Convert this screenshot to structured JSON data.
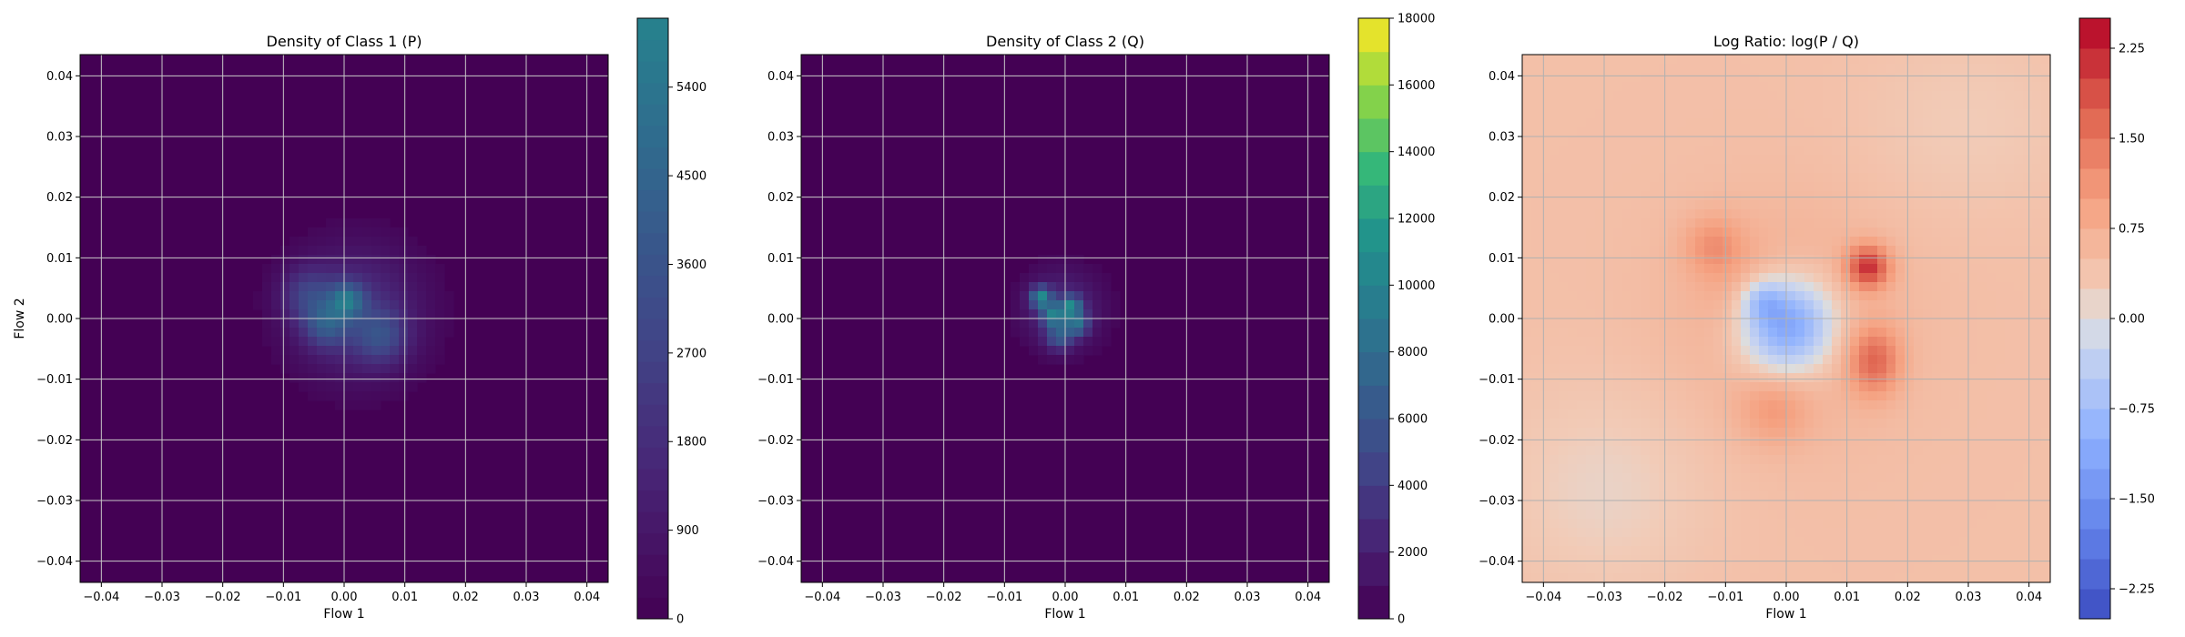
{
  "chart_data": [
    {
      "type": "heatmap",
      "title": "Density of Class 1 (P)",
      "xlabel": "Flow 1",
      "ylabel": "Flow 2",
      "xlim": [
        -0.0435,
        0.0435
      ],
      "ylim": [
        -0.0435,
        0.0435
      ],
      "xticks": [
        "−0.04",
        "−0.03",
        "−0.02",
        "−0.01",
        "0.00",
        "0.01",
        "0.02",
        "0.03",
        "0.04"
      ],
      "yticks": [
        "0.04",
        "0.03",
        "0.02",
        "0.01",
        "0.00",
        "−0.01",
        "−0.02",
        "−0.03",
        "−0.04"
      ],
      "grid": true,
      "colormap": "viridis",
      "colorbar_range": [
        0,
        6100
      ],
      "colorbar_ticks": [
        "0",
        "900",
        "1800",
        "2700",
        "3600",
        "4500",
        "5400"
      ],
      "background_color": "#440154",
      "blobs": [
        {
          "x": 0.002,
          "y": 0.001,
          "sx": 0.0075,
          "sy": 0.0075,
          "intensity": 0.18
        },
        {
          "x": 0.0005,
          "y": 0.003,
          "sx": 0.002,
          "sy": 0.002,
          "intensity": 0.34
        },
        {
          "x": -0.003,
          "y": -0.001,
          "sx": 0.0025,
          "sy": 0.0025,
          "intensity": 0.24
        },
        {
          "x": 0.006,
          "y": -0.003,
          "sx": 0.003,
          "sy": 0.003,
          "intensity": 0.2
        },
        {
          "x": -0.006,
          "y": 0.004,
          "sx": 0.003,
          "sy": 0.003,
          "intensity": 0.18
        }
      ]
    },
    {
      "type": "heatmap",
      "title": "Density of Class 2 (Q)",
      "xlabel": "Flow 1",
      "ylabel": "",
      "xlim": [
        -0.0435,
        0.0435
      ],
      "ylim": [
        -0.0435,
        0.0435
      ],
      "xticks": [
        "−0.04",
        "−0.03",
        "−0.02",
        "−0.01",
        "0.00",
        "0.01",
        "0.02",
        "0.03",
        "0.04"
      ],
      "yticks": [
        "0.04",
        "0.03",
        "0.02",
        "0.01",
        "0.00",
        "−0.01",
        "−0.02",
        "−0.03",
        "−0.04"
      ],
      "grid": true,
      "colormap": "viridis",
      "colorbar_range": [
        0,
        18000
      ],
      "colorbar_ticks": [
        "0",
        "2000",
        "4000",
        "6000",
        "8000",
        "10000",
        "12000",
        "14000",
        "16000",
        "18000"
      ],
      "background_color": "#440154",
      "blobs": [
        {
          "x": -0.0005,
          "y": 0.0015,
          "sx": 0.0045,
          "sy": 0.0045,
          "intensity": 0.16
        },
        {
          "x": -0.004,
          "y": 0.0035,
          "sx": 0.0012,
          "sy": 0.0012,
          "intensity": 0.5
        },
        {
          "x": 0.001,
          "y": 0.002,
          "sx": 0.0012,
          "sy": 0.0012,
          "intensity": 0.45
        },
        {
          "x": -0.002,
          "y": 0.0005,
          "sx": 0.0013,
          "sy": 0.0013,
          "intensity": 0.4
        },
        {
          "x": 0.002,
          "y": -0.001,
          "sx": 0.0013,
          "sy": 0.0013,
          "intensity": 0.35
        },
        {
          "x": -0.001,
          "y": -0.003,
          "sx": 0.0015,
          "sy": 0.0015,
          "intensity": 0.28
        }
      ]
    },
    {
      "type": "heatmap",
      "title": "Log Ratio: log(P / Q)",
      "xlabel": "Flow 1",
      "ylabel": "",
      "xlim": [
        -0.0435,
        0.0435
      ],
      "ylim": [
        -0.0435,
        0.0435
      ],
      "xticks": [
        "−0.04",
        "−0.03",
        "−0.02",
        "−0.01",
        "0.00",
        "0.01",
        "0.02",
        "0.03",
        "0.04"
      ],
      "yticks": [
        "0.04",
        "0.03",
        "0.02",
        "0.01",
        "0.00",
        "−0.01",
        "−0.02",
        "−0.03",
        "−0.04"
      ],
      "grid": true,
      "colormap": "coolwarm",
      "colorbar_range": [
        -2.5,
        2.5
      ],
      "colorbar_ticks": [
        "−2.25",
        "−1.50",
        "−0.75",
        "0.00",
        "0.75",
        "1.50",
        "2.25"
      ],
      "background_level": 0.45,
      "features": [
        {
          "x": 0.0,
          "y": 0.0,
          "sx": 0.013,
          "sy": 0.013,
          "value": 0.35
        },
        {
          "x": -0.006,
          "y": 0.004,
          "sx": 0.005,
          "sy": 0.005,
          "value": 0.3
        },
        {
          "x": 0.0,
          "y": -0.001,
          "sx": 0.0055,
          "sy": 0.0055,
          "value": -2.0
        },
        {
          "x": -0.004,
          "y": 0.003,
          "sx": 0.0025,
          "sy": 0.0025,
          "value": -0.8
        },
        {
          "x": 0.0135,
          "y": 0.0085,
          "sx": 0.0025,
          "sy": 0.0025,
          "value": 1.6
        },
        {
          "x": 0.0145,
          "y": -0.007,
          "sx": 0.003,
          "sy": 0.004,
          "value": 1.1
        },
        {
          "x": -0.012,
          "y": 0.012,
          "sx": 0.0035,
          "sy": 0.0035,
          "value": 0.6
        },
        {
          "x": -0.002,
          "y": -0.015,
          "sx": 0.004,
          "sy": 0.004,
          "value": 0.5
        },
        {
          "x": -0.03,
          "y": -0.028,
          "sx": 0.012,
          "sy": 0.012,
          "value": -0.3
        },
        {
          "x": 0.03,
          "y": 0.032,
          "sx": 0.012,
          "sy": 0.01,
          "value": -0.2
        }
      ]
    }
  ]
}
